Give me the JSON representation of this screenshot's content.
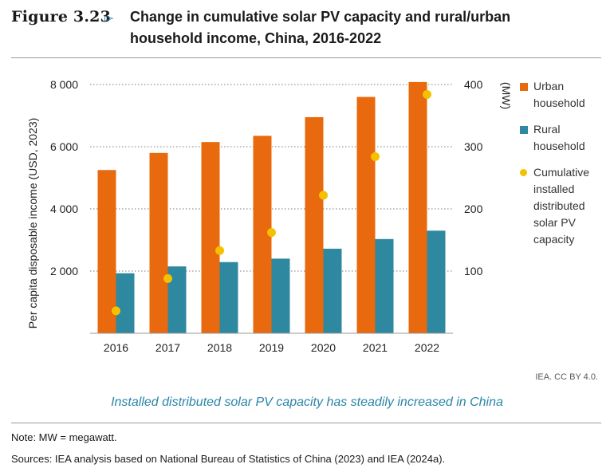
{
  "header": {
    "figure_label": "Figure 3.23",
    "title": "Change in cumulative solar PV capacity and rural/urban household income, China, 2016-2022"
  },
  "credit": "IEA. CC BY 4.0.",
  "caption": "Installed distributed solar PV capacity has steadily increased in China",
  "note": "Note: MW = megawatt.",
  "sources": "Sources: IEA analysis based on National Bureau of Statistics of China (2023) and IEA (2024a).",
  "colors": {
    "urban": "#e8690e",
    "rural": "#2e88a0",
    "capacity": "#f5c000",
    "grid": "#7a7a7a"
  },
  "chart_data": {
    "type": "bar",
    "categories": [
      "2016",
      "2017",
      "2018",
      "2019",
      "2020",
      "2021",
      "2022"
    ],
    "ylabel": "Per capita disposable income (USD, 2023)",
    "y2label": "(MW)",
    "ylim": [
      0,
      8000
    ],
    "y2lim": [
      0,
      400
    ],
    "yticks": [
      2000,
      4000,
      6000,
      8000
    ],
    "yticklabels": [
      "2 000",
      "4 000",
      "6 000",
      "8 000"
    ],
    "y2ticks": [
      100,
      200,
      300,
      400
    ],
    "y2ticklabels": [
      "100",
      "200",
      "300",
      "400"
    ],
    "grid": true,
    "legend_position": "right",
    "series": [
      {
        "name": "Urban household",
        "type": "bar",
        "axis": "left",
        "values": [
          5250,
          5800,
          6150,
          6350,
          6950,
          7600,
          8080
        ]
      },
      {
        "name": "Rural household",
        "type": "bar",
        "axis": "left",
        "values": [
          1930,
          2150,
          2290,
          2400,
          2720,
          3030,
          3300
        ]
      },
      {
        "name": "Cumulative installed distributed solar PV capacity",
        "type": "scatter",
        "axis": "right",
        "values": [
          36,
          88,
          133,
          162,
          222,
          284,
          384
        ]
      }
    ]
  },
  "legend": {
    "urban": [
      "Urban",
      "household"
    ],
    "rural": [
      "Rural",
      "household"
    ],
    "capacity": [
      "Cumulative",
      "installed",
      "distributed",
      "solar PV",
      "capacity"
    ]
  }
}
